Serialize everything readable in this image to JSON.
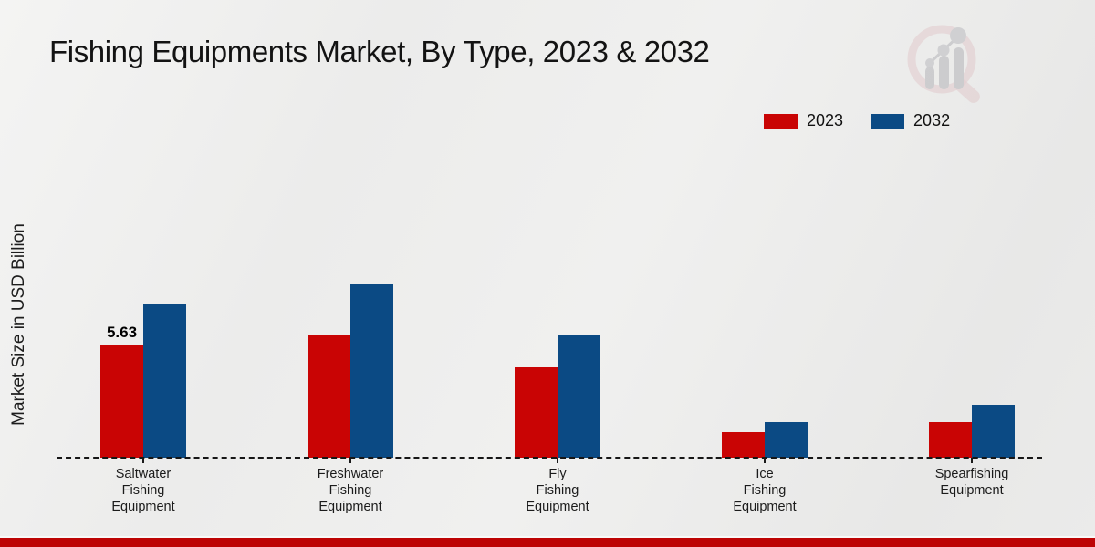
{
  "chart_data": {
    "type": "bar",
    "title": "Fishing Equipments Market, By Type, 2023 & 2032",
    "ylabel": "Market Size in USD Billion",
    "xlabel": "",
    "ylim": [
      0,
      10
    ],
    "grid": false,
    "legend_position": "top-right",
    "baseline_style": "dashed",
    "categories": [
      "Saltwater Fishing Equipment",
      "Freshwater Fishing Equipment",
      "Fly Fishing Equipment",
      "Ice Fishing Equipment",
      "Spearfishing Equipment"
    ],
    "category_lines": [
      [
        "Saltwater",
        "Fishing",
        "Equipment"
      ],
      [
        "Freshwater",
        "Fishing",
        "Equipment"
      ],
      [
        "Fly",
        "Fishing",
        "Equipment"
      ],
      [
        "Ice",
        "Fishing",
        "Equipment"
      ],
      [
        "Spearfishing",
        "Equipment"
      ]
    ],
    "series": [
      {
        "name": "2023",
        "color": "#c90404",
        "values": [
          5.63,
          6.15,
          4.5,
          1.25,
          1.75
        ]
      },
      {
        "name": "2032",
        "color": "#0b4a84",
        "values": [
          7.65,
          8.7,
          6.15,
          1.75,
          2.65
        ]
      }
    ],
    "data_labels": [
      {
        "series_index": 0,
        "category_index": 0,
        "text": "5.63"
      }
    ]
  },
  "watermark": {
    "name": "magnifier-bar-chart-logo"
  },
  "footer": {
    "bar_color": "#bd0404"
  },
  "background": "#ececec"
}
